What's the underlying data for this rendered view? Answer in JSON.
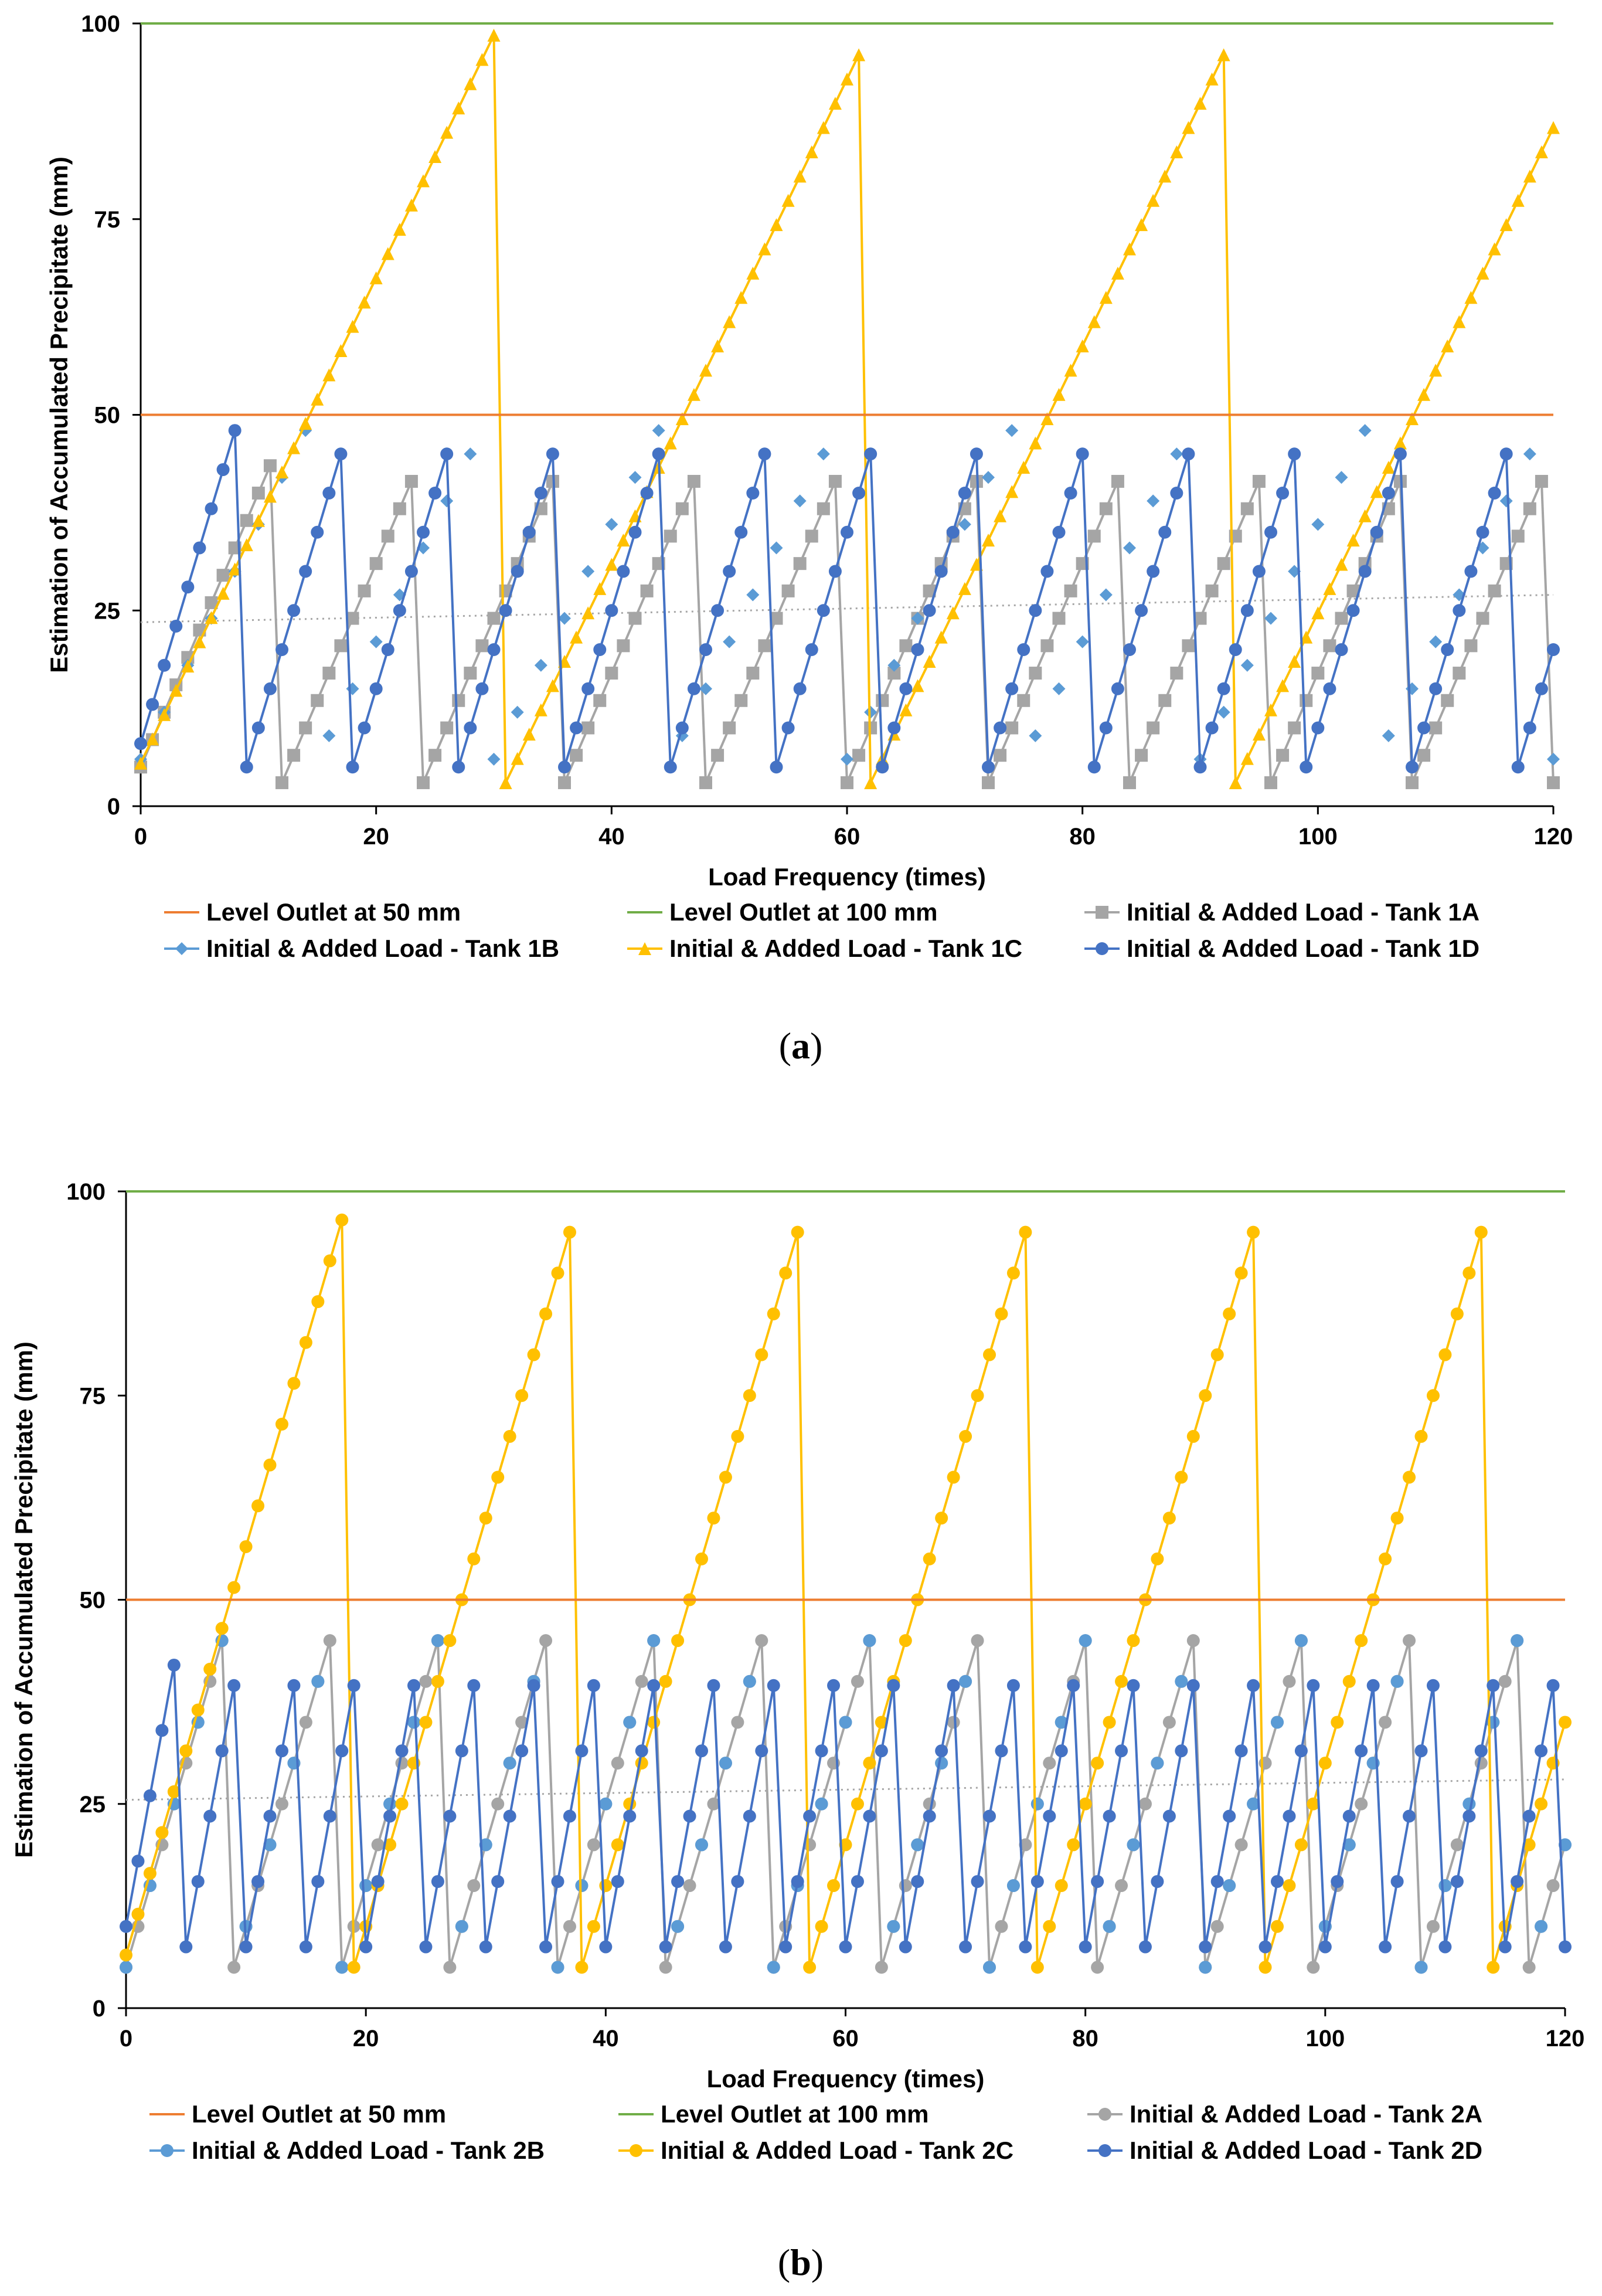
{
  "chart_data": [
    {
      "type": "line",
      "panel": "a",
      "panel_label": "a",
      "xlabel": "Load Frequency (times)",
      "ylabel": "Estimation of Accumulated Precipitate (mm)",
      "xlim": [
        0,
        120
      ],
      "ylim": [
        0,
        100
      ],
      "xticks": [
        0,
        20,
        40,
        60,
        80,
        100,
        120
      ],
      "yticks": [
        0,
        25,
        50,
        75,
        100
      ],
      "trendline": {
        "style": "dotted",
        "color": "#a6a6a6",
        "from": [
          0,
          23.5
        ],
        "to": [
          120,
          27
        ]
      },
      "legend_position": "bottom",
      "series": [
        {
          "name": "Level Outlet at 50 mm",
          "color": "#ed7d31",
          "marker": "none",
          "line": true,
          "type": "hline",
          "y": 50
        },
        {
          "name": "Level Outlet at 100 mm",
          "color": "#70ad47",
          "marker": "none",
          "line": true,
          "type": "hline",
          "y": 100
        },
        {
          "name": "Initial & Added Load - Tank 1A",
          "color": "#a5a5a5",
          "marker": "square",
          "line": true,
          "gen": {
            "start": 5,
            "rise": 3.5,
            "len": 12,
            "min": 3,
            "offset": 0,
            "period": 15
          }
        },
        {
          "name": "Initial & Added Load - Tank 1B",
          "color": "#5b9bd5",
          "marker": "diamond",
          "line": false,
          "gen": {
            "start": 6,
            "rise": 3,
            "len": 15,
            "min": 6,
            "offset": 0,
            "period": 30,
            "skip": 2
          }
        },
        {
          "name": "Initial & Added Load - Tank 1C",
          "color": "#ffc000",
          "marker": "triangle",
          "line": true,
          "gen": {
            "start": 5.5,
            "rise": 3.1,
            "len": 31,
            "min": 3,
            "offset": 0,
            "period": 31
          }
        },
        {
          "name": "Initial & Added Load - Tank 1D",
          "color": "#4472c4",
          "marker": "circle",
          "line": true,
          "gen": {
            "start": 8,
            "rise": 5,
            "len": 9,
            "min": 5,
            "offset": 0,
            "period": 10
          }
        }
      ]
    },
    {
      "type": "line",
      "panel": "b",
      "panel_label": "b",
      "xlabel": "Load Frequency (times)",
      "ylabel": "Estimation of Accumulated Precipitate (mm)",
      "xlim": [
        0,
        120
      ],
      "ylim": [
        0,
        100
      ],
      "xticks": [
        0,
        20,
        40,
        60,
        80,
        100,
        120
      ],
      "yticks": [
        0,
        25,
        50,
        75,
        100
      ],
      "trendline": {
        "style": "dotted",
        "color": "#a6a6a6",
        "from": [
          0,
          25.5
        ],
        "to": [
          120,
          28
        ]
      },
      "legend_position": "bottom",
      "series": [
        {
          "name": "Level Outlet at 50 mm",
          "color": "#ed7d31",
          "marker": "none",
          "line": true,
          "type": "hline",
          "y": 50
        },
        {
          "name": "Level Outlet at 100 mm",
          "color": "#70ad47",
          "marker": "none",
          "line": true,
          "type": "hline",
          "y": 100
        },
        {
          "name": "Initial & Added Load - Tank 2A",
          "color": "#a5a5a5",
          "marker": "circle",
          "line": true,
          "gen": {
            "start": 5,
            "rise": 5,
            "len": 9,
            "min": 5,
            "offset": 0,
            "period": 10
          }
        },
        {
          "name": "Initial & Added Load - Tank 2B",
          "color": "#5b9bd5",
          "marker": "circle",
          "line": false,
          "gen": {
            "start": 5,
            "rise": 5,
            "len": 9,
            "min": 5,
            "offset": 0,
            "period": 10,
            "skip": 2
          }
        },
        {
          "name": "Initial & Added Load - Tank 2C",
          "color": "#ffc000",
          "marker": "circle",
          "line": true,
          "gen": {
            "start": 6.5,
            "rise": 5,
            "len": 19,
            "min": 5,
            "offset": 0,
            "period": 20
          }
        },
        {
          "name": "Initial & Added Load - Tank 2D",
          "color": "#4472c4",
          "marker": "circle",
          "line": true,
          "gen": {
            "start": 10,
            "rise": 8,
            "len": 5,
            "min": 7.5,
            "offset": 0,
            "period": 5
          }
        }
      ]
    }
  ]
}
